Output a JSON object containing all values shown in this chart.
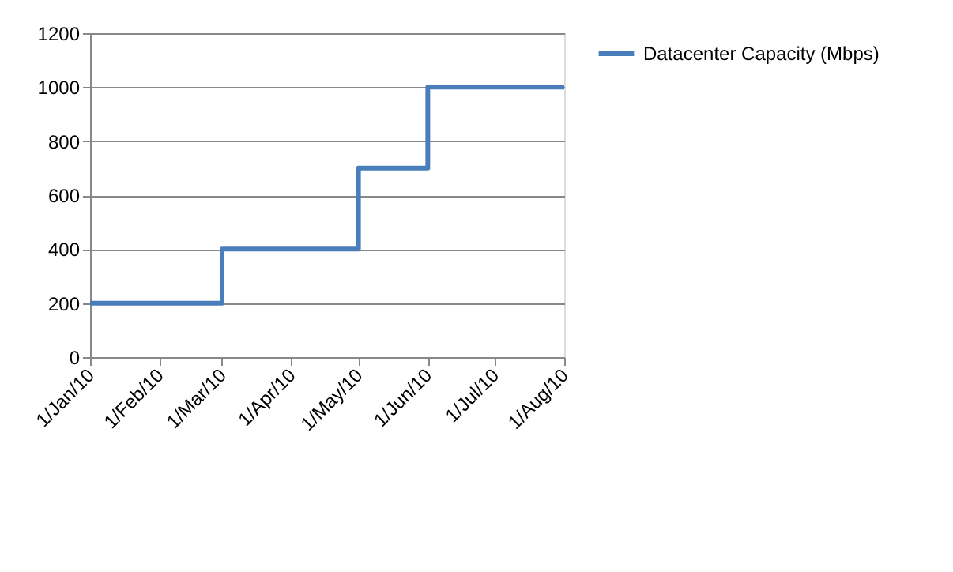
{
  "chart_data": {
    "type": "step",
    "x": [
      "2010-01-01",
      "2010-03-01",
      "2010-05-01",
      "2010-06-01",
      "2010-08-01"
    ],
    "series": [
      {
        "name": "Datacenter Capacity (Mbps)",
        "color": "#4a7ebb",
        "values": [
          200,
          400,
          700,
          1000,
          1000
        ]
      }
    ],
    "xlim": [
      "2010-01-01",
      "2010-08-01"
    ],
    "xticks": [
      {
        "value": "2010-01-01",
        "label": "1/Jan/10"
      },
      {
        "value": "2010-02-01",
        "label": "1/Feb/10"
      },
      {
        "value": "2010-03-01",
        "label": "1/Mar/10"
      },
      {
        "value": "2010-04-01",
        "label": "1/Apr/10"
      },
      {
        "value": "2010-05-01",
        "label": "1/May/10"
      },
      {
        "value": "2010-06-01",
        "label": "1/Jun/10"
      },
      {
        "value": "2010-07-01",
        "label": "1/Jul/10"
      },
      {
        "value": "2010-08-01",
        "label": "1/Aug/10"
      }
    ],
    "ylim": [
      0,
      1200
    ],
    "yticks": [
      0,
      200,
      400,
      600,
      800,
      1000,
      1200
    ],
    "grid": "y",
    "legend": "right",
    "marker": "none",
    "line_style": "solid"
  }
}
